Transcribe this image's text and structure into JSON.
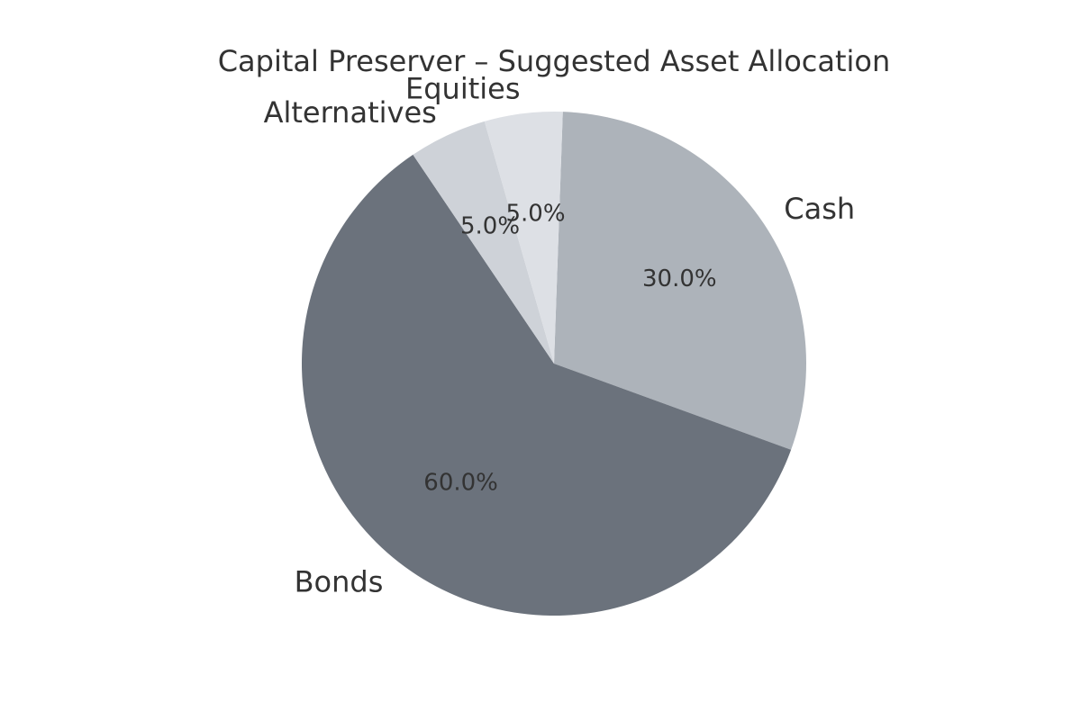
{
  "chart_data": {
    "type": "pie",
    "title": "Capital Preserver – Suggested Asset Allocation",
    "categories": [
      "Cash",
      "Bonds",
      "Alternatives",
      "Equities"
    ],
    "values": [
      30,
      60,
      5,
      5
    ],
    "value_labels": [
      "30.0%",
      "60.0%",
      "5.0%",
      "5.0%"
    ],
    "colors": [
      "#adb3ba",
      "#6b727c",
      "#ced2d8",
      "#dde0e5"
    ],
    "start_angle_deg": 88,
    "direction": "clockwise",
    "legend": "none"
  }
}
